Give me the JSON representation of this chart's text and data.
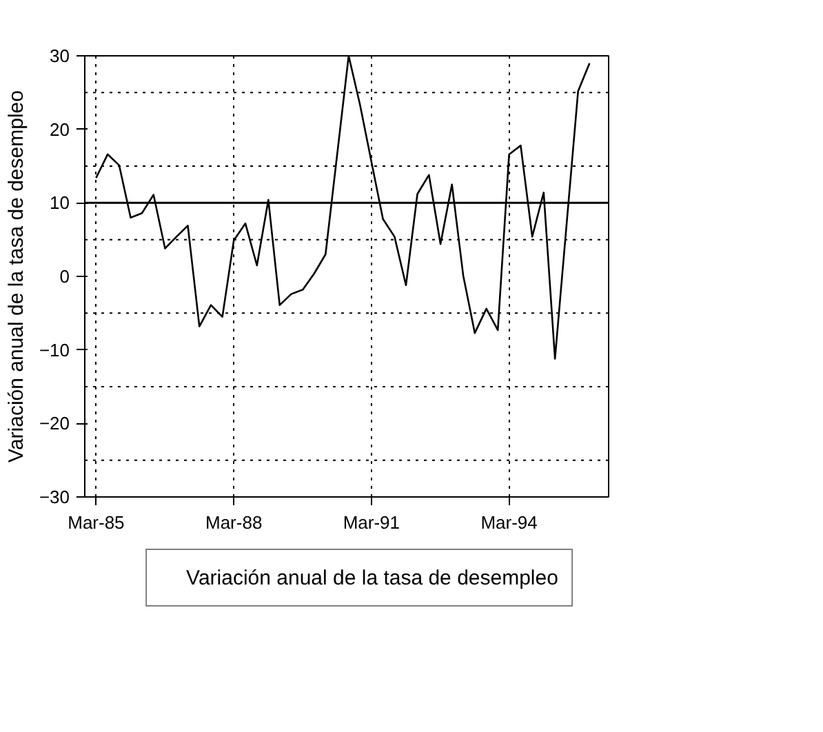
{
  "chart_data": {
    "type": "line",
    "ylabel": "Variación anual de la tasa de desempleo",
    "x": [
      "1985-03",
      "1985-06",
      "1985-09",
      "1985-12",
      "1986-03",
      "1986-06",
      "1986-09",
      "1986-12",
      "1987-03",
      "1987-06",
      "1987-09",
      "1987-12",
      "1988-03",
      "1988-06",
      "1988-09",
      "1988-12",
      "1989-03",
      "1989-06",
      "1989-09",
      "1989-12",
      "1990-03",
      "1990-06",
      "1990-09",
      "1990-12",
      "1991-03",
      "1991-06",
      "1991-09",
      "1991-12",
      "1992-03",
      "1992-06",
      "1992-09",
      "1992-12",
      "1993-03",
      "1993-06",
      "1993-09",
      "1993-12",
      "1994-03",
      "1994-06",
      "1994-09",
      "1994-12",
      "1995-03",
      "1995-06",
      "1995-09",
      "1995-12"
    ],
    "series": [
      {
        "name": "Variación anual de la tasa de desempleo",
        "color": "#000000",
        "values": [
          13.4,
          16.6,
          15.1,
          8.0,
          8.6,
          11.1,
          3.8,
          5.4,
          6.9,
          -6.8,
          -3.9,
          -5.5,
          4.9,
          7.2,
          1.5,
          10.4,
          -3.9,
          -2.4,
          -1.8,
          0.4,
          3.0,
          16.5,
          30.0,
          23.3,
          15.6,
          7.8,
          5.4,
          -1.2,
          11.2,
          13.8,
          4.4,
          12.5,
          0.1,
          -7.7,
          -4.4,
          -7.3,
          16.6,
          17.8,
          5.4,
          11.4,
          -11.2,
          7.0,
          25.2,
          29.0
        ]
      }
    ],
    "xlim": [
      "1984-12",
      "1996-05"
    ],
    "xticks": [
      {
        "value": "1985-03",
        "label": "Mar-85"
      },
      {
        "value": "1988-03",
        "label": "Mar-88"
      },
      {
        "value": "1991-03",
        "label": "Mar-91"
      },
      {
        "value": "1994-03",
        "label": "Mar-94"
      }
    ],
    "ylim": [
      -30,
      30
    ],
    "yticks": [
      -30,
      -20,
      -10,
      0,
      10,
      20,
      30
    ],
    "ref_lines": [
      {
        "axis": "y",
        "value": 25,
        "line_style": "dotted"
      },
      {
        "axis": "y",
        "value": 15,
        "line_style": "dotted"
      },
      {
        "axis": "y",
        "value": 5,
        "line_style": "dotted"
      },
      {
        "axis": "y",
        "value": -5,
        "line_style": "dotted"
      },
      {
        "axis": "y",
        "value": -15,
        "line_style": "dotted"
      },
      {
        "axis": "y",
        "value": -25,
        "line_style": "dotted"
      },
      {
        "axis": "y",
        "value": 10,
        "line_style": "solid"
      }
    ],
    "grid": "x",
    "legend": "bottom",
    "marker": "none",
    "line_style": "solid"
  }
}
